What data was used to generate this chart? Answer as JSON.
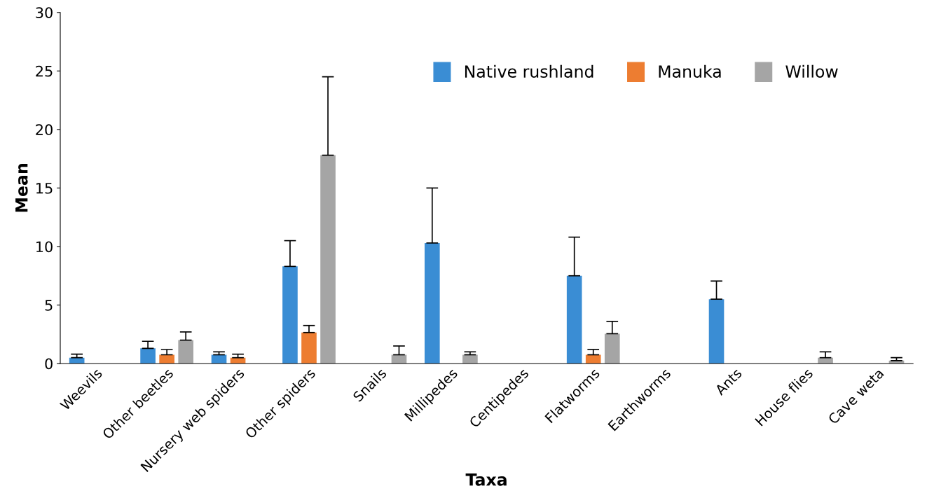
{
  "chart_data": {
    "type": "bar",
    "xlabel": "Taxa",
    "ylabel": "Mean",
    "categories": [
      "Weevils",
      "Other beetles",
      "Nursery web spiders",
      "Other spiders",
      "Snails",
      "Millipedes",
      "Centipedes",
      "Flatworms",
      "Earthworms",
      "Ants",
      "House flies",
      "Cave weta"
    ],
    "series": [
      {
        "name": "Native rushland",
        "color": "#3a8dd4",
        "values": [
          0.5,
          1.3,
          0.75,
          8.3,
          0,
          10.3,
          0,
          7.5,
          0,
          5.5,
          0,
          0
        ],
        "errors": [
          [
            0.5,
            0.8
          ],
          [
            1.3,
            1.9
          ],
          [
            0.75,
            1.0
          ],
          [
            8.3,
            10.5
          ],
          null,
          [
            10.3,
            15.0
          ],
          null,
          [
            7.5,
            10.8
          ],
          null,
          [
            5.5,
            7.05
          ],
          null,
          null
        ]
      },
      {
        "name": "Manuka",
        "color": "#ed7d31",
        "values": [
          0,
          0.75,
          0.5,
          2.65,
          0,
          0,
          0,
          0.75,
          0,
          0,
          0,
          0
        ],
        "errors": [
          null,
          [
            0.75,
            1.2
          ],
          [
            0.5,
            0.8
          ],
          [
            2.65,
            3.25
          ],
          null,
          null,
          null,
          [
            0.75,
            1.2
          ],
          null,
          null,
          null,
          null
        ]
      },
      {
        "name": "Willow",
        "color": "#a5a5a5",
        "values": [
          0,
          2.0,
          0,
          17.8,
          0.75,
          0.75,
          0,
          2.55,
          0,
          0,
          0.5,
          0.25
        ],
        "errors": [
          null,
          [
            2.0,
            2.7
          ],
          null,
          [
            17.8,
            24.5
          ],
          [
            0.75,
            1.5
          ],
          [
            0.75,
            1.0
          ],
          null,
          [
            2.55,
            3.6
          ],
          null,
          null,
          [
            0.5,
            1.0
          ],
          [
            0.25,
            0.5
          ]
        ]
      }
    ],
    "ylim": [
      0,
      30
    ],
    "yticks": [
      0,
      5,
      10,
      15,
      20,
      25,
      30
    ],
    "grid": false,
    "legend": "top right"
  }
}
